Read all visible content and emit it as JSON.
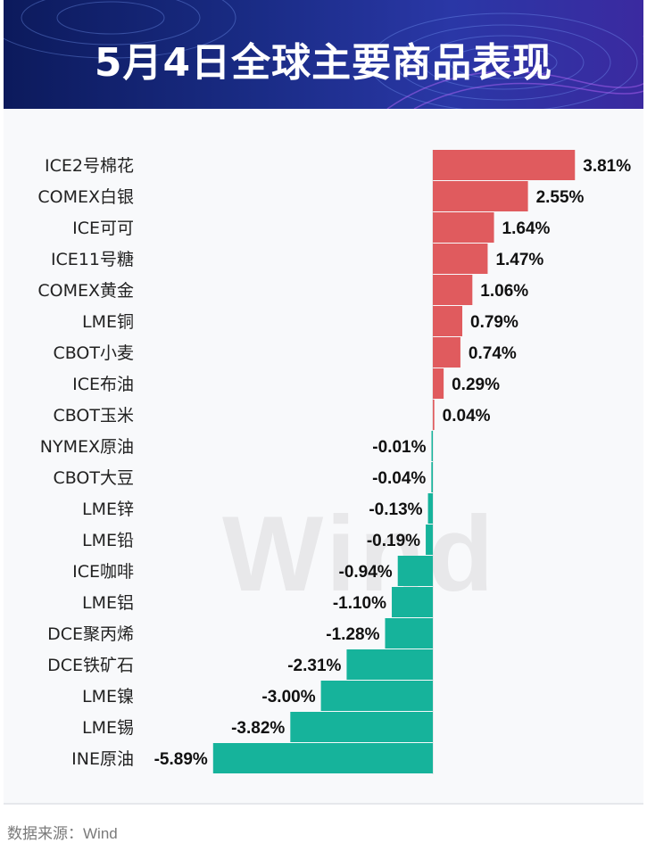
{
  "header": {
    "title": "5月4日全球主要商品表现"
  },
  "watermark": "Wind",
  "source": "数据来源：Wind",
  "colors": {
    "positive": "#e05b5e",
    "negative": "#16b39b",
    "title_bg": "#1a2c86"
  },
  "chart_data": {
    "type": "bar",
    "orientation": "horizontal",
    "title": "5月4日全球主要商品表现",
    "unit": "%",
    "categories": [
      "ICE2号棉花",
      "COMEX白银",
      "ICE可可",
      "ICE11号糖",
      "COMEX黄金",
      "LME铜",
      "CBOT小麦",
      "ICE布油",
      "CBOT玉米",
      "NYMEX原油",
      "CBOT大豆",
      "LME锌",
      "LME铅",
      "ICE咖啡",
      "LME铝",
      "DCE聚丙烯",
      "DCE铁矿石",
      "LME镍",
      "LME锡",
      "INE原油"
    ],
    "values": [
      3.81,
      2.55,
      1.64,
      1.47,
      1.06,
      0.79,
      0.74,
      0.29,
      0.04,
      -0.01,
      -0.04,
      -0.13,
      -0.19,
      -0.94,
      -1.1,
      -1.28,
      -2.31,
      -3.0,
      -3.82,
      -5.89
    ],
    "labels": [
      "3.81%",
      "2.55%",
      "1.64%",
      "1.47%",
      "1.06%",
      "0.79%",
      "0.74%",
      "0.29%",
      "0.04%",
      "-0.01%",
      "-0.04%",
      "-0.13%",
      "-0.19%",
      "-0.94%",
      "-1.10%",
      "-1.28%",
      "-2.31%",
      "-3.00%",
      "-3.82%",
      "-5.89%"
    ]
  }
}
